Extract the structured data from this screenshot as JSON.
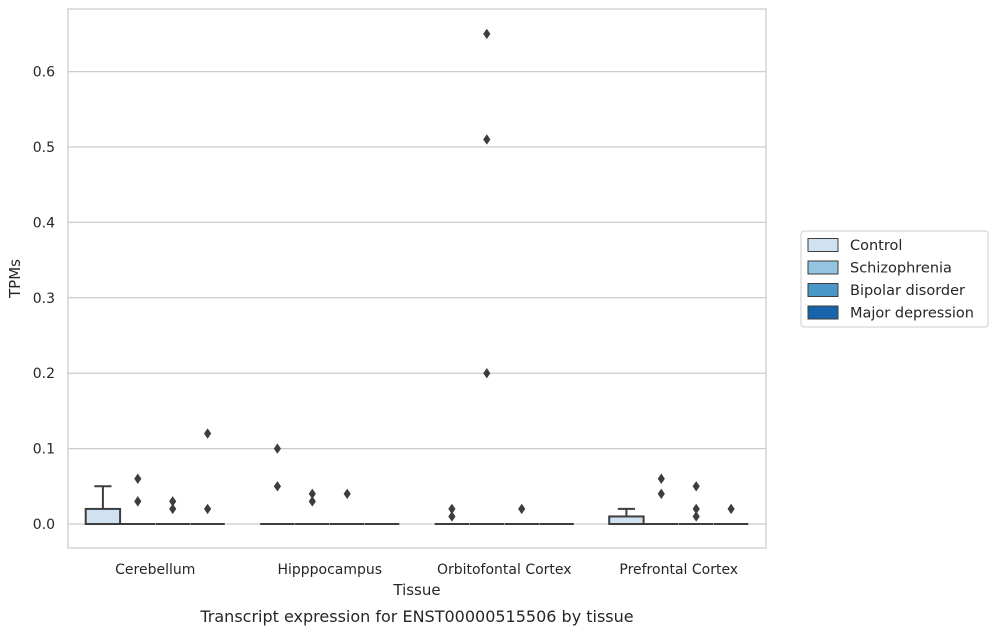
{
  "chart_data": {
    "type": "box",
    "caption": "Transcript expression for ENST00000515506 by tissue",
    "xlabel": "Tissue",
    "ylabel": "TPMs",
    "ylim": [
      -0.032,
      0.685
    ],
    "yticks": [
      "0.0",
      "0.1",
      "0.2",
      "0.3",
      "0.4",
      "0.5",
      "0.6"
    ],
    "ytick_values": [
      0,
      0.1,
      0.2,
      0.3,
      0.4,
      0.5,
      0.6
    ],
    "grid": "horizontal",
    "legend_position": "right",
    "categories": [
      "Cerebellum",
      "Hipppocampus",
      "Orbitofontal Cortex",
      "Prefrontal Cortex"
    ],
    "series": [
      {
        "name": "Control",
        "color": "#d0e1f2",
        "boxes": [
          {
            "q1": 0,
            "median": 0,
            "q3": 0.02,
            "whisker_low": 0,
            "whisker_high": 0.05,
            "outliers": []
          },
          {
            "q1": 0,
            "median": 0,
            "q3": 0,
            "whisker_low": 0,
            "whisker_high": 0,
            "outliers": [
              0.1,
              0.05
            ]
          },
          {
            "q1": 0,
            "median": 0,
            "q3": 0,
            "whisker_low": 0,
            "whisker_high": 0,
            "outliers": [
              0.02,
              0.01
            ]
          },
          {
            "q1": 0,
            "median": 0,
            "q3": 0.01,
            "whisker_low": 0,
            "whisker_high": 0.02,
            "outliers": []
          }
        ]
      },
      {
        "name": "Schizophrenia",
        "color": "#94c4df",
        "boxes": [
          {
            "q1": 0,
            "median": 0,
            "q3": 0,
            "whisker_low": 0,
            "whisker_high": 0,
            "outliers": [
              0.06,
              0.03
            ]
          },
          {
            "q1": 0,
            "median": 0,
            "q3": 0,
            "whisker_low": 0,
            "whisker_high": 0,
            "outliers": [
              0.04,
              0.03
            ]
          },
          {
            "q1": 0,
            "median": 0,
            "q3": 0,
            "whisker_low": 0,
            "whisker_high": 0,
            "outliers": [
              0.65,
              0.51,
              0.2
            ]
          },
          {
            "q1": 0,
            "median": 0,
            "q3": 0,
            "whisker_low": 0,
            "whisker_high": 0,
            "outliers": [
              0.06,
              0.04
            ]
          }
        ]
      },
      {
        "name": "Bipolar disorder",
        "color": "#4a98c9",
        "boxes": [
          {
            "q1": 0,
            "median": 0,
            "q3": 0,
            "whisker_low": 0,
            "whisker_high": 0,
            "outliers": [
              0.03,
              0.02
            ]
          },
          {
            "q1": 0,
            "median": 0,
            "q3": 0,
            "whisker_low": 0,
            "whisker_high": 0,
            "outliers": [
              0.04
            ]
          },
          {
            "q1": 0,
            "median": 0,
            "q3": 0,
            "whisker_low": 0,
            "whisker_high": 0,
            "outliers": [
              0.02
            ]
          },
          {
            "q1": 0,
            "median": 0,
            "q3": 0,
            "whisker_low": 0,
            "whisker_high": 0,
            "outliers": [
              0.05,
              0.02,
              0.01
            ]
          }
        ]
      },
      {
        "name": "Major depression",
        "color": "#1764ab",
        "boxes": [
          {
            "q1": 0,
            "median": 0,
            "q3": 0,
            "whisker_low": 0,
            "whisker_high": 0,
            "outliers": [
              0.12,
              0.02
            ]
          },
          {
            "q1": 0,
            "median": 0,
            "q3": 0,
            "whisker_low": 0,
            "whisker_high": 0,
            "outliers": []
          },
          {
            "q1": 0,
            "median": 0,
            "q3": 0,
            "whisker_low": 0,
            "whisker_high": 0,
            "outliers": []
          },
          {
            "q1": 0,
            "median": 0,
            "q3": 0,
            "whisker_low": 0,
            "whisker_high": 0,
            "outliers": [
              0.02
            ]
          }
        ]
      }
    ]
  }
}
